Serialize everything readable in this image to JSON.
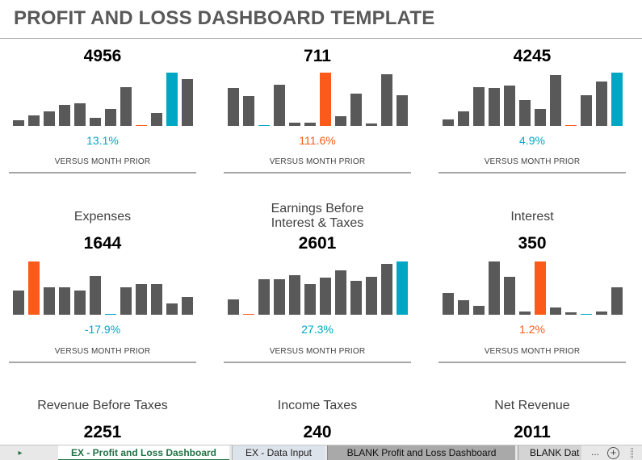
{
  "title": "PROFIT AND LOSS DASHBOARD TEMPLATE",
  "colors": {
    "gray": "#595959",
    "orange": "#fc5a1b",
    "teal": "#00a7c4",
    "rule": "#a6a6a6"
  },
  "panels": [
    {
      "label": "",
      "value": "4956",
      "pct": "13.1%",
      "pct_color": "teal",
      "caption": "VERSUS MONTH PRIOR",
      "bars": [
        0.11,
        0.2,
        0.27,
        0.39,
        0.42,
        0.15,
        0.32,
        0.73,
        0.02,
        0.24,
        1.0,
        0.88
      ],
      "bar_colors": [
        "gray",
        "gray",
        "gray",
        "gray",
        "gray",
        "gray",
        "gray",
        "gray",
        "orange",
        "gray",
        "teal",
        "gray"
      ]
    },
    {
      "label": "",
      "value": "711",
      "pct": "111.6%",
      "pct_color": "orange",
      "caption": "VERSUS MONTH PRIOR",
      "bars": [
        0.71,
        0.56,
        0.02,
        0.77,
        0.06,
        0.06,
        1.0,
        0.18,
        0.6,
        0.04,
        0.97,
        0.58
      ],
      "bar_colors": [
        "gray",
        "gray",
        "teal",
        "gray",
        "gray",
        "gray",
        "orange",
        "gray",
        "gray",
        "gray",
        "gray",
        "gray"
      ]
    },
    {
      "label": "",
      "value": "4245",
      "pct": "4.9%",
      "pct_color": "teal",
      "caption": "VERSUS MONTH PRIOR",
      "bars": [
        0.12,
        0.27,
        0.72,
        0.71,
        0.76,
        0.48,
        0.32,
        0.95,
        0.02,
        0.58,
        0.83,
        1.0
      ],
      "bar_colors": [
        "gray",
        "gray",
        "gray",
        "gray",
        "gray",
        "gray",
        "gray",
        "gray",
        "orange",
        "gray",
        "gray",
        "teal"
      ]
    },
    {
      "label": "Expenses",
      "value": "1644",
      "pct": "-17.9%",
      "pct_color": "teal",
      "caption": "VERSUS MONTH PRIOR",
      "bars": [
        0.46,
        1.0,
        0.52,
        0.52,
        0.45,
        0.72,
        0.02,
        0.52,
        0.58,
        0.58,
        0.21,
        0.34
      ],
      "bar_colors": [
        "gray",
        "orange",
        "gray",
        "gray",
        "gray",
        "gray",
        "teal",
        "gray",
        "gray",
        "gray",
        "gray",
        "gray"
      ]
    },
    {
      "label": "Earnings Before Interest & Taxes",
      "value": "2601",
      "pct": "27.3%",
      "pct_color": "teal",
      "caption": "VERSUS MONTH PRIOR",
      "bars": [
        0.29,
        0.02,
        0.66,
        0.66,
        0.74,
        0.58,
        0.69,
        0.84,
        0.64,
        0.71,
        0.95,
        1.0
      ],
      "bar_colors": [
        "gray",
        "orange",
        "gray",
        "gray",
        "gray",
        "gray",
        "gray",
        "gray",
        "gray",
        "gray",
        "gray",
        "teal"
      ]
    },
    {
      "label": "Interest",
      "value": "350",
      "pct": "1.2%",
      "pct_color": "orange",
      "caption": "VERSUS MONTH PRIOR",
      "bars": [
        0.41,
        0.27,
        0.16,
        1.0,
        0.71,
        0.06,
        1.0,
        0.13,
        0.05,
        0.02,
        0.06,
        0.52
      ],
      "bar_colors": [
        "gray",
        "gray",
        "gray",
        "gray",
        "gray",
        "gray",
        "orange",
        "gray",
        "gray",
        "teal",
        "gray",
        "gray"
      ]
    },
    {
      "label": "Revenue Before Taxes",
      "value": "2251"
    },
    {
      "label": "Income Taxes",
      "value": "240"
    },
    {
      "label": "Net Revenue",
      "value": "2011"
    }
  ],
  "tabs": [
    {
      "label": "EX - Profit and Loss Dashboard",
      "active": true
    },
    {
      "label": "EX - Data Input",
      "active": false
    },
    {
      "label": "BLANK Profit and Loss Dashboard",
      "active": false
    },
    {
      "label": "BLANK Dat",
      "active": false
    }
  ],
  "tab_controls": {
    "scroll": "▸",
    "more": "...",
    "add": "+"
  }
}
